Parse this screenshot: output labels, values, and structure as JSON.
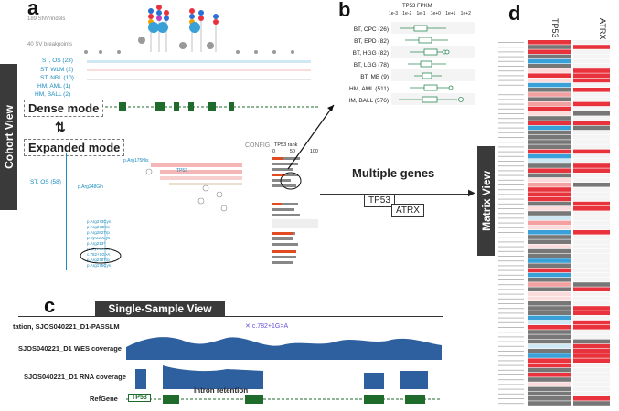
{
  "panels": {
    "a": "a",
    "b": "b",
    "c": "c",
    "d": "d"
  },
  "side_tabs": {
    "cohort": "Cohort View",
    "matrix": "Matrix View"
  },
  "panel_a": {
    "snv_count": "189 SNV/indels",
    "sv_count": "40 SV breakpoints",
    "tracks": [
      "ST, OS (23)",
      "ST, WLM (2)",
      "ST, NBL (10)",
      "HM, AML (1)",
      "HM, BALL (2)"
    ],
    "dense_mode": "Dense mode",
    "expanded_mode": "Expanded mode",
    "config": "CONFIG",
    "tp53_rank": "TP53 rank",
    "rank_ticks": [
      "0",
      "50",
      "100"
    ],
    "expanded_track": "ST, OS (58)",
    "mut_labels": [
      "p.Arg175His",
      "p.Arg248Gln",
      "p.Arg273Cys",
      "TP53",
      "p.Arg282Trp",
      "p.Tyr220Cys",
      "c.782+1G>A",
      "p.Arg213*"
    ]
  },
  "panel_b": {
    "title": "TP53 FPKM",
    "axis_ticks": [
      "1e-3",
      "1e-2",
      "1e-1",
      "1e+0",
      "1e+1",
      "1e+2"
    ],
    "groups": [
      "BT, CPC (26)",
      "BT, EPD (82)",
      "BT, HGG (82)",
      "BT, LGG (78)",
      "BT, MB (9)",
      "HM, AML (511)",
      "HM, BALL (576)"
    ]
  },
  "multiple_genes": "Multiple genes",
  "genes": [
    "TP53",
    "ATRX"
  ],
  "panel_c": {
    "header": "Single-Sample View",
    "annotation": "tation, SJOS040221_D1-PASSLM",
    "variant": "c.782+1G>A",
    "wes": "SJOS040221_D1 WES coverage",
    "rna": "SJOS040221_D1 RNA coverage",
    "refgene": "RefGene",
    "gene_label": "TP53",
    "intron": "intron retention"
  },
  "panel_d": {
    "col_tp53": "TP53",
    "col_atrx": "ATRX"
  },
  "colors": {
    "dark_bg": "#3a3a3a",
    "blue": "#1a8bbf",
    "green": "#1f6b2c",
    "cov": "#2e5f9e",
    "red": "#e8333d",
    "gray": "#777777"
  }
}
